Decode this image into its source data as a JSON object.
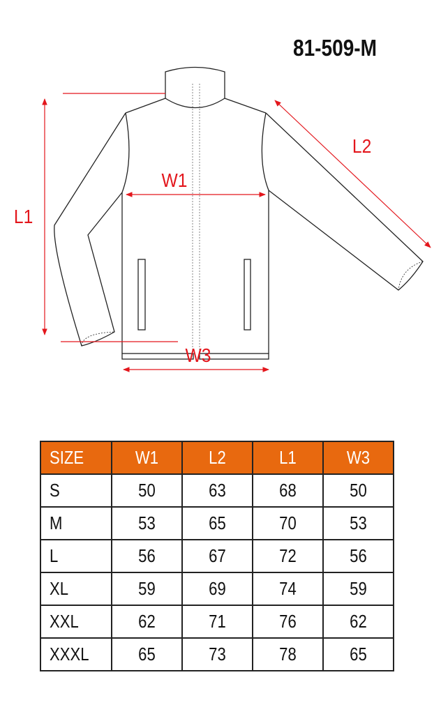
{
  "product_code": "81-509-M",
  "diagram": {
    "labels": {
      "L1": "L1",
      "L2": "L2",
      "W1": "W1",
      "W3": "W3"
    },
    "colors": {
      "measure": "#e3161c",
      "outline": "#222222"
    }
  },
  "size_table": {
    "header_color": "#e8690f",
    "headers": [
      "SIZE",
      "W1",
      "L2",
      "L1",
      "W3"
    ],
    "rows": [
      [
        "S",
        "50",
        "63",
        "68",
        "50"
      ],
      [
        "M",
        "53",
        "65",
        "70",
        "53"
      ],
      [
        "L",
        "56",
        "67",
        "72",
        "56"
      ],
      [
        "XL",
        "59",
        "69",
        "74",
        "59"
      ],
      [
        "XXL",
        "62",
        "71",
        "76",
        "62"
      ],
      [
        "XXXL",
        "65",
        "73",
        "78",
        "65"
      ]
    ]
  }
}
